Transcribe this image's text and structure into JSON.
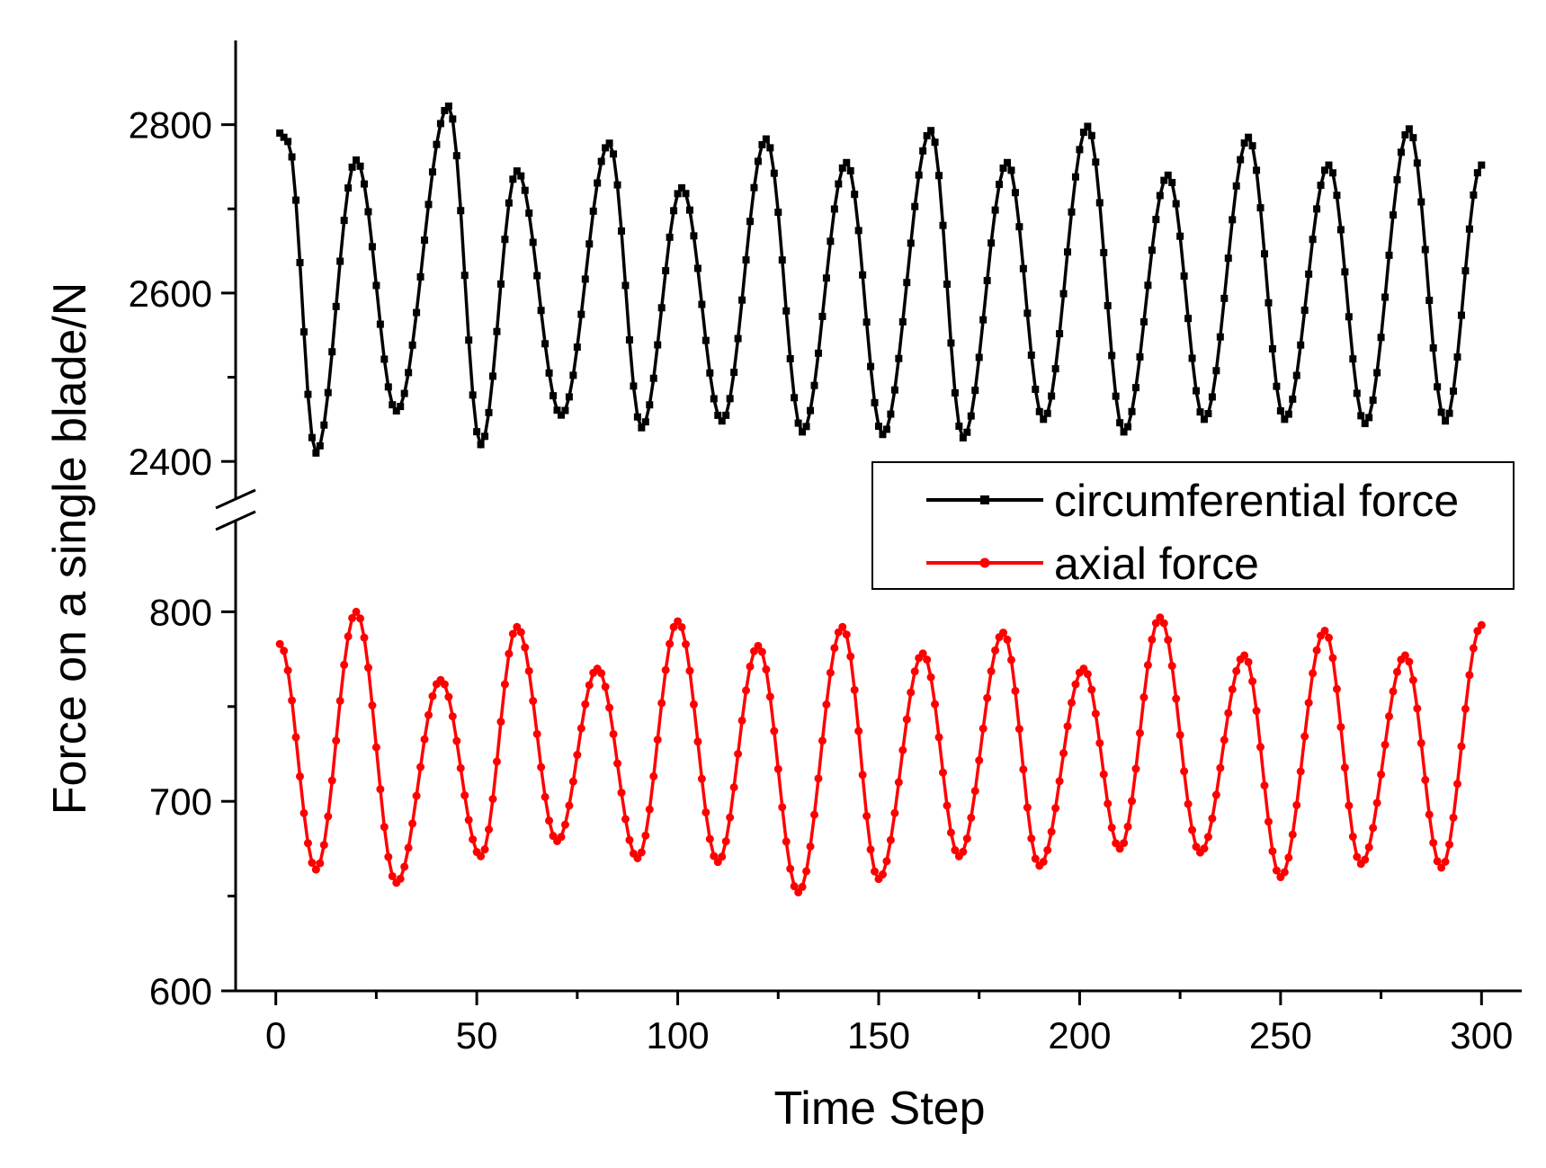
{
  "chart_data": {
    "type": "line",
    "title": "",
    "xlabel": "Time Step",
    "ylabel": "Force on a single blade/N",
    "xlim": [
      -10,
      310
    ],
    "x_ticks": [
      "0",
      "50",
      "100",
      "150",
      "200",
      "250",
      "300"
    ],
    "x_tick_values": [
      0,
      50,
      100,
      150,
      200,
      250,
      300
    ],
    "y_axis_break": true,
    "y_upper_segment": {
      "range": [
        2350,
        2900
      ],
      "ticks": [
        "2400",
        "2600",
        "2800"
      ],
      "tick_values": [
        2400,
        2600,
        2800
      ]
    },
    "y_lower_segment": {
      "range": [
        600,
        850
      ],
      "ticks": [
        "600",
        "700",
        "800"
      ],
      "tick_values": [
        600,
        700,
        800
      ]
    },
    "legend_position": "right, between segments",
    "series": [
      {
        "name": "circumferential force",
        "color": "#000000",
        "marker": "square",
        "segment": "upper",
        "x_range": [
          1,
          300
        ],
        "keypoints": [
          [
            1,
            2790
          ],
          [
            3,
            2780
          ],
          [
            10,
            2410
          ],
          [
            20,
            2758
          ],
          [
            30,
            2460
          ],
          [
            43,
            2822
          ],
          [
            51,
            2420
          ],
          [
            60,
            2745
          ],
          [
            71,
            2455
          ],
          [
            83,
            2778
          ],
          [
            91,
            2440
          ],
          [
            101,
            2725
          ],
          [
            111,
            2448
          ],
          [
            122,
            2783
          ],
          [
            131,
            2435
          ],
          [
            142,
            2755
          ],
          [
            151,
            2432
          ],
          [
            163,
            2793
          ],
          [
            171,
            2428
          ],
          [
            182,
            2755
          ],
          [
            191,
            2450
          ],
          [
            202,
            2798
          ],
          [
            211,
            2435
          ],
          [
            222,
            2740
          ],
          [
            231,
            2450
          ],
          [
            242,
            2785
          ],
          [
            251,
            2450
          ],
          [
            262,
            2752
          ],
          [
            271,
            2445
          ],
          [
            282,
            2795
          ],
          [
            291,
            2448
          ],
          [
            300,
            2752
          ]
        ]
      },
      {
        "name": "axial force",
        "color": "#ff0000",
        "marker": "circle",
        "segment": "lower",
        "x_range": [
          1,
          300
        ],
        "keypoints": [
          [
            1,
            783
          ],
          [
            10,
            664
          ],
          [
            20,
            800
          ],
          [
            30,
            657
          ],
          [
            41,
            764
          ],
          [
            51,
            671
          ],
          [
            60,
            792
          ],
          [
            70,
            679
          ],
          [
            80,
            770
          ],
          [
            90,
            670
          ],
          [
            100,
            795
          ],
          [
            110,
            668
          ],
          [
            120,
            782
          ],
          [
            130,
            652
          ],
          [
            141,
            792
          ],
          [
            150,
            659
          ],
          [
            161,
            778
          ],
          [
            170,
            671
          ],
          [
            181,
            789
          ],
          [
            190,
            666
          ],
          [
            201,
            770
          ],
          [
            210,
            675
          ],
          [
            220,
            797
          ],
          [
            230,
            673
          ],
          [
            241,
            777
          ],
          [
            250,
            660
          ],
          [
            261,
            790
          ],
          [
            270,
            667
          ],
          [
            281,
            777
          ],
          [
            290,
            665
          ],
          [
            300,
            793
          ]
        ]
      }
    ]
  }
}
